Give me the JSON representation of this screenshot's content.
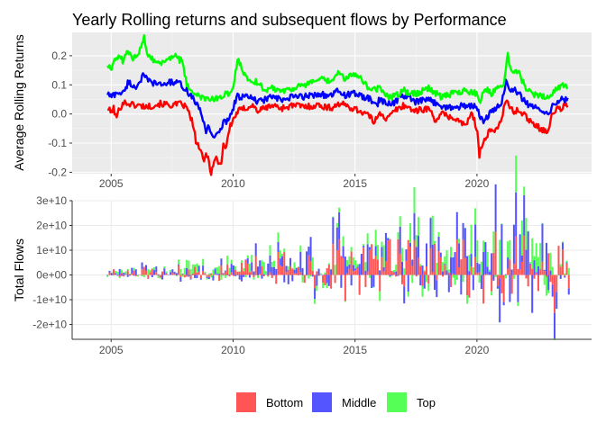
{
  "chart_data": [
    {
      "type": "line",
      "title": "Yearly Rolling returns and subsequent flows by Performance",
      "xlabel": "",
      "ylabel": "Average Rolling Returns",
      "xlim": [
        2003.4,
        2024.7
      ],
      "ylim": [
        -0.205,
        0.28
      ],
      "x_ticks": [
        2005,
        2010,
        2015,
        2020
      ],
      "y_ticks": [
        -0.2,
        -0.1,
        0.0,
        0.1,
        0.2
      ],
      "y_tick_labels": [
        "-0.2",
        "-0.1",
        "0.0",
        "0.1",
        "0.2"
      ],
      "grid": true,
      "background": "gray",
      "series": [
        {
          "name": "Bottom",
          "color": "#ff0000",
          "x": [
            2004.85,
            2005.0,
            2005.1,
            2005.2,
            2005.35,
            2005.5,
            2005.75,
            2006.0,
            2006.5,
            2007.0,
            2007.5,
            2007.9,
            2008.1,
            2008.3,
            2008.5,
            2008.65,
            2008.8,
            2008.9,
            2009.0,
            2009.1,
            2009.2,
            2009.3,
            2009.5,
            2009.6,
            2009.7,
            2009.85,
            2010.0,
            2010.2,
            2010.5,
            2010.8,
            2011.0,
            2011.3,
            2011.6,
            2012.0,
            2012.5,
            2013.0,
            2013.5,
            2014.0,
            2014.3,
            2014.6,
            2014.9,
            2015.2,
            2015.5,
            2015.8,
            2016.0,
            2016.3,
            2016.6,
            2017.0,
            2017.5,
            2018.0,
            2018.3,
            2018.6,
            2018.9,
            2019.2,
            2019.5,
            2019.8,
            2020.0,
            2020.1,
            2020.2,
            2020.35,
            2020.5,
            2020.7,
            2021.0,
            2021.2,
            2021.35,
            2021.5,
            2021.8,
            2022.0,
            2022.3,
            2022.6,
            2022.9,
            2023.1,
            2023.3,
            2023.45,
            2023.6,
            2023.75
          ],
          "values": [
            0.02,
            0.005,
            0.02,
            -0.015,
            0.02,
            0.04,
            0.035,
            0.03,
            0.025,
            0.035,
            0.03,
            0.035,
            0.02,
            -0.02,
            -0.1,
            -0.12,
            -0.17,
            -0.13,
            -0.16,
            -0.2,
            -0.17,
            -0.15,
            -0.18,
            -0.1,
            -0.12,
            -0.05,
            -0.02,
            0.01,
            0.02,
            0.03,
            0.01,
            0.02,
            0.03,
            0.02,
            0.03,
            0.025,
            0.03,
            0.02,
            0.035,
            0.03,
            0.02,
            0.01,
            0.0,
            -0.03,
            0.01,
            -0.02,
            0.01,
            0.03,
            0.01,
            0.02,
            -0.02,
            0.0,
            -0.01,
            -0.02,
            -0.04,
            0.0,
            -0.05,
            -0.14,
            -0.1,
            -0.09,
            -0.06,
            -0.06,
            -0.02,
            0.05,
            0.02,
            0.01,
            0.01,
            -0.01,
            -0.03,
            -0.05,
            -0.06,
            0.0,
            0.02,
            0.015,
            0.03,
            0.03
          ]
        },
        {
          "name": "Middle",
          "color": "#0000ff",
          "x": [
            2004.85,
            2005.0,
            2005.3,
            2005.5,
            2005.7,
            2006.0,
            2006.3,
            2006.6,
            2007.0,
            2007.5,
            2007.9,
            2008.1,
            2008.4,
            2008.7,
            2008.9,
            2009.0,
            2009.2,
            2009.4,
            2009.6,
            2009.8,
            2010.0,
            2010.15,
            2010.4,
            2010.8,
            2011.0,
            2011.3,
            2011.6,
            2012.0,
            2012.5,
            2013.0,
            2013.5,
            2014.0,
            2014.3,
            2014.6,
            2015.0,
            2015.3,
            2015.6,
            2015.9,
            2016.0,
            2016.3,
            2016.6,
            2017.0,
            2017.5,
            2018.0,
            2018.5,
            2019.0,
            2019.5,
            2019.9,
            2020.1,
            2020.25,
            2020.5,
            2020.8,
            2021.0,
            2021.2,
            2021.35,
            2021.6,
            2022.0,
            2022.3,
            2022.6,
            2022.9,
            2023.2,
            2023.5,
            2023.75
          ],
          "values": [
            0.07,
            0.06,
            0.075,
            0.07,
            0.11,
            0.09,
            0.13,
            0.11,
            0.1,
            0.11,
            0.1,
            0.08,
            0.05,
            0.0,
            -0.06,
            -0.04,
            -0.08,
            -0.07,
            -0.03,
            -0.02,
            0.02,
            0.06,
            0.06,
            0.055,
            0.04,
            0.05,
            0.06,
            0.045,
            0.06,
            0.06,
            0.07,
            0.06,
            0.08,
            0.065,
            0.07,
            0.06,
            0.05,
            0.03,
            0.05,
            0.035,
            0.04,
            0.065,
            0.04,
            0.05,
            0.03,
            0.02,
            0.03,
            0.025,
            0.0,
            -0.03,
            0.0,
            0.02,
            0.03,
            0.12,
            0.08,
            0.08,
            0.04,
            0.02,
            0.02,
            0.0,
            0.04,
            0.05,
            0.05
          ]
        },
        {
          "name": "Top",
          "color": "#00ff00",
          "x": [
            2004.85,
            2005.0,
            2005.3,
            2005.5,
            2005.7,
            2005.9,
            2006.0,
            2006.2,
            2006.35,
            2006.5,
            2006.7,
            2007.0,
            2007.3,
            2007.6,
            2007.9,
            2008.1,
            2008.3,
            2008.6,
            2008.9,
            2009.2,
            2009.5,
            2009.8,
            2010.0,
            2010.2,
            2010.5,
            2010.8,
            2011.0,
            2011.3,
            2011.6,
            2012.0,
            2012.5,
            2013.0,
            2013.5,
            2014.0,
            2014.3,
            2014.6,
            2015.0,
            2015.3,
            2015.6,
            2016.0,
            2016.3,
            2016.6,
            2017.0,
            2017.5,
            2018.0,
            2018.5,
            2019.0,
            2019.5,
            2020.0,
            2020.15,
            2020.3,
            2020.6,
            2020.9,
            2021.1,
            2021.25,
            2021.4,
            2021.6,
            2021.8,
            2022.0,
            2022.3,
            2022.6,
            2022.9,
            2023.2,
            2023.5,
            2023.75
          ],
          "values": [
            0.17,
            0.16,
            0.2,
            0.18,
            0.22,
            0.18,
            0.2,
            0.22,
            0.27,
            0.2,
            0.19,
            0.17,
            0.19,
            0.2,
            0.18,
            0.1,
            0.08,
            0.06,
            0.05,
            0.05,
            0.06,
            0.07,
            0.09,
            0.19,
            0.13,
            0.11,
            0.11,
            0.08,
            0.09,
            0.08,
            0.09,
            0.1,
            0.12,
            0.11,
            0.14,
            0.12,
            0.14,
            0.12,
            0.08,
            0.09,
            0.06,
            0.06,
            0.08,
            0.07,
            0.09,
            0.06,
            0.07,
            0.08,
            0.07,
            0.04,
            0.09,
            0.07,
            0.09,
            0.1,
            0.21,
            0.14,
            0.15,
            0.13,
            0.08,
            0.07,
            0.06,
            0.06,
            0.08,
            0.1,
            0.09
          ]
        }
      ]
    },
    {
      "type": "bar",
      "stacked": true,
      "title": "",
      "xlabel": "",
      "ylabel": "Total Flows",
      "xlim": [
        2003.4,
        2024.7
      ],
      "ylim": [
        -26000000000.0,
        30000000000.0
      ],
      "x_ticks": [
        2005,
        2010,
        2015,
        2020
      ],
      "y_ticks": [
        -20000000000.0,
        -10000000000.0,
        0,
        10000000000.0,
        20000000000.0,
        30000000000.0
      ],
      "y_tick_labels": [
        "-2e+10",
        "-1e+10",
        "0e+00",
        "1e+10",
        "2e+10",
        "3e+10"
      ],
      "grid": true,
      "background": "white",
      "bar_period_months": 1,
      "series": [
        {
          "name": "Bottom",
          "color": "#ff5555",
          "anchors_x": [
            2004.9,
            2006.0,
            2007.0,
            2008.0,
            2009.0,
            2010.0,
            2011.0,
            2012.0,
            2013.0,
            2014.0,
            2014.5,
            2014.8,
            2015.0,
            2016.0,
            2017.0,
            2018.0,
            2019.0,
            2020.0,
            2020.4,
            2021.0,
            2022.0,
            2023.0,
            2023.5,
            2023.8
          ],
          "pos_envelope": [
            3000000000.0,
            3000000000.0,
            4000000000.0,
            4000000000.0,
            3000000000.0,
            5000000000.0,
            8000000000.0,
            10000000000.0,
            12000000000.0,
            12000000000.0,
            17000000000.0,
            12000000000.0,
            12000000000.0,
            15000000000.0,
            16000000000.0,
            15000000000.0,
            16000000000.0,
            17000000000.0,
            20000000000.0,
            18000000000.0,
            18000000000.0,
            16000000000.0,
            16000000000.0,
            12000000000.0
          ],
          "neg_envelope": [
            -1000000000.0,
            -2000000000.0,
            -2000000000.0,
            -2000000000.0,
            -3000000000.0,
            -2000000000.0,
            -4000000000.0,
            -5000000000.0,
            -6000000000.0,
            -6000000000.0,
            -8000000000.0,
            -23000000000.0,
            -8000000000.0,
            -9000000000.0,
            -9000000000.0,
            -9000000000.0,
            -11000000000.0,
            -13000000000.0,
            -12000000000.0,
            -11000000000.0,
            -12000000000.0,
            -16000000000.0,
            -17000000000.0,
            -10000000000.0
          ]
        },
        {
          "name": "Middle",
          "color": "#5555ff",
          "anchors_x": [
            2004.9,
            2006.0,
            2007.0,
            2008.0,
            2009.0,
            2010.0,
            2011.0,
            2012.0,
            2013.0,
            2014.0,
            2015.0,
            2016.0,
            2017.0,
            2018.0,
            2019.0,
            2020.0,
            2020.6,
            2020.9,
            2021.5,
            2022.0,
            2022.6,
            2023.0,
            2023.5,
            2023.8
          ],
          "pos_envelope": [
            2000000000.0,
            3000000000.0,
            3000000000.0,
            3000000000.0,
            2000000000.0,
            4000000000.0,
            6000000000.0,
            8000000000.0,
            10000000000.0,
            11000000000.0,
            13000000000.0,
            13000000000.0,
            12000000000.0,
            13000000000.0,
            14000000000.0,
            16000000000.0,
            23000000000.0,
            27000000000.0,
            18000000000.0,
            18000000000.0,
            16000000000.0,
            14000000000.0,
            12000000000.0,
            8000000000.0
          ],
          "neg_envelope": [
            -1000000000.0,
            -1000000000.0,
            -2000000000.0,
            -2000000000.0,
            -3000000000.0,
            -3000000000.0,
            -3000000000.0,
            -4000000000.0,
            -5000000000.0,
            -5000000000.0,
            -6000000000.0,
            -6000000000.0,
            -7000000000.0,
            -7000000000.0,
            -8000000000.0,
            -10000000000.0,
            -20000000000.0,
            -21000000000.0,
            -13000000000.0,
            -12000000000.0,
            -21000000000.0,
            -16000000000.0,
            -14000000000.0,
            -7000000000.0
          ]
        },
        {
          "name": "Top",
          "color": "#55ff55",
          "anchors_x": [
            2004.9,
            2006.0,
            2007.0,
            2008.0,
            2009.0,
            2010.0,
            2011.0,
            2012.0,
            2013.0,
            2014.0,
            2015.0,
            2016.0,
            2017.0,
            2018.0,
            2019.0,
            2020.0,
            2021.0,
            2022.0,
            2023.0,
            2023.8
          ],
          "pos_envelope": [
            1000000000.0,
            2000000000.0,
            3000000000.0,
            4000000000.0,
            4000000000.0,
            5000000000.0,
            5000000000.0,
            6000000000.0,
            8000000000.0,
            9000000000.0,
            10000000000.0,
            10000000000.0,
            11000000000.0,
            12000000000.0,
            13000000000.0,
            14000000000.0,
            16000000000.0,
            16000000000.0,
            14000000000.0,
            8000000000.0
          ],
          "neg_envelope": [
            -500000000.0,
            -1000000000.0,
            -1000000000.0,
            -1000000000.0,
            -2000000000.0,
            -2000000000.0,
            -2000000000.0,
            -3000000000.0,
            -3000000000.0,
            -3000000000.0,
            -4000000000.0,
            -4000000000.0,
            -5000000000.0,
            -5000000000.0,
            -6000000000.0,
            -7000000000.0,
            -7000000000.0,
            -8000000000.0,
            -8000000000.0,
            -5000000000.0
          ]
        }
      ]
    }
  ],
  "legend": {
    "placement": "bottom",
    "items": [
      {
        "label": "Bottom",
        "color": "#ff5555"
      },
      {
        "label": "Middle",
        "color": "#5555ff"
      },
      {
        "label": "Top",
        "color": "#55ff55"
      }
    ]
  }
}
